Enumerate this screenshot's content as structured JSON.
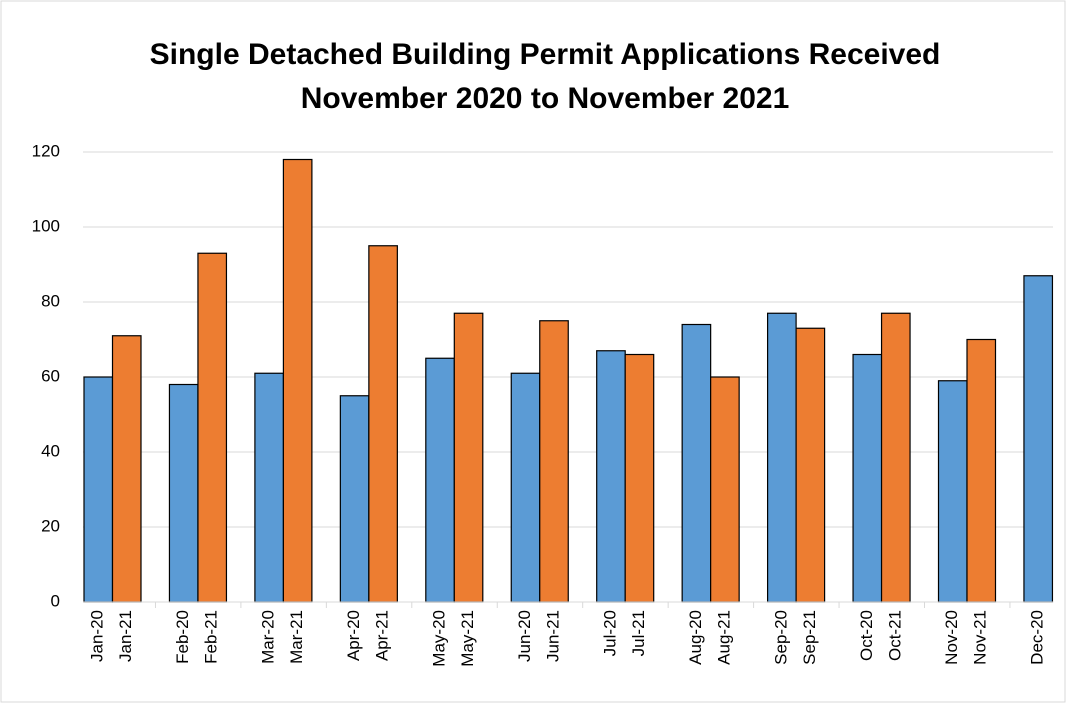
{
  "chart_data": {
    "type": "bar",
    "title": "Single Detached Building Permit Applications Received",
    "subtitle": "November 2020 to November 2021",
    "series": [
      {
        "color": "#5b9bd5",
        "labels": [
          "Jan-20",
          "Feb-20",
          "Mar-20",
          "Apr-20",
          "May-20",
          "Jun-20",
          "Jul-20",
          "Aug-20",
          "Sep-20",
          "Oct-20",
          "Nov-20",
          "Dec-20"
        ],
        "values": [
          60,
          58,
          61,
          55,
          65,
          61,
          67,
          74,
          77,
          66,
          59,
          87
        ]
      },
      {
        "color": "#ed7d31",
        "labels": [
          "Jan-21",
          "Feb-21",
          "Mar-21",
          "Apr-21",
          "May-21",
          "Jun-21",
          "Jul-21",
          "Aug-21",
          "Sep-21",
          "Oct-21",
          "Nov-21",
          null
        ],
        "values": [
          71,
          93,
          118,
          95,
          77,
          75,
          66,
          60,
          73,
          77,
          70,
          null
        ]
      }
    ],
    "ylim": [
      0,
      120
    ],
    "yticks": [
      0,
      20,
      40,
      60,
      80,
      100,
      120
    ],
    "grid": true
  }
}
